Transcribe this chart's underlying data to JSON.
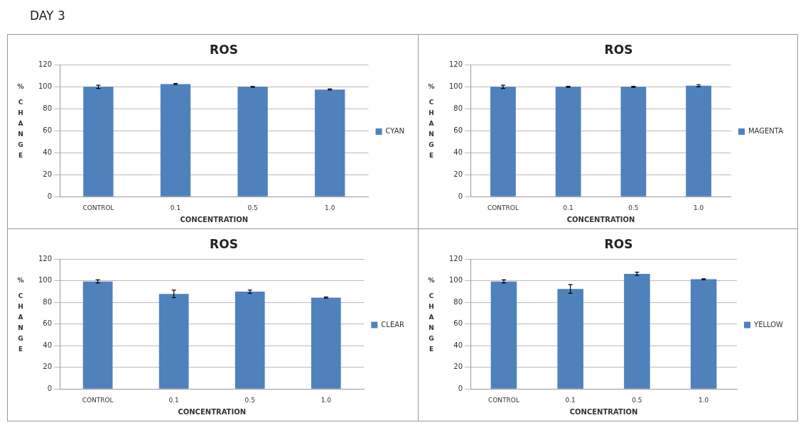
{
  "chart_data": [
    {
      "type": "bar",
      "title": "ROS",
      "xlabel": "CONCENTRATION",
      "ylabel": "% CHANGE",
      "annotations": [
        "DAY 3"
      ],
      "categories": [
        "CONTROL",
        "0.1",
        "0.5",
        "1.0"
      ],
      "series": [
        {
          "name": "CYAN",
          "color": "#4f81bd",
          "values": [
            100,
            102.5,
            100,
            97.5
          ],
          "errors": [
            1.5,
            0.5,
            0.3,
            0.5
          ]
        }
      ],
      "ylim": [
        0,
        120
      ],
      "yticks": [
        0,
        20,
        40,
        60,
        80,
        100,
        120
      ],
      "grid": "y",
      "legend": "right"
    },
    {
      "type": "bar",
      "title": "ROS",
      "xlabel": "CONCENTRATION",
      "ylabel": "% CHANGE",
      "categories": [
        "CONTROL",
        "0.1",
        "0.5",
        "1.0"
      ],
      "series": [
        {
          "name": "MAGENTA",
          "color": "#4f81bd",
          "values": [
            100,
            100,
            100,
            101
          ],
          "errors": [
            1.5,
            0.5,
            0.5,
            1
          ]
        }
      ],
      "ylim": [
        0,
        120
      ],
      "yticks": [
        0,
        20,
        40,
        60,
        80,
        100,
        120
      ],
      "grid": "y",
      "legend": "right"
    },
    {
      "type": "bar",
      "title": "ROS",
      "xlabel": "CONCENTRATION",
      "ylabel": "% CHANGE",
      "categories": [
        "CONTROL",
        "0.1",
        "0.5",
        "1.0"
      ],
      "series": [
        {
          "name": "CLEAR",
          "color": "#4f81bd",
          "values": [
            99.5,
            88,
            90,
            84.5
          ],
          "errors": [
            1.5,
            3.5,
            1.5,
            0.5
          ]
        }
      ],
      "ylim": [
        0,
        120
      ],
      "yticks": [
        0,
        20,
        40,
        60,
        80,
        100,
        120
      ],
      "grid": "y",
      "legend": "right"
    },
    {
      "type": "bar",
      "title": "ROS",
      "xlabel": "CONCENTRATION",
      "ylabel": "% CHANGE",
      "categories": [
        "CONTROL",
        "0.1",
        "0.5",
        "1.0"
      ],
      "series": [
        {
          "name": "YELLOW",
          "color": "#4f81bd",
          "values": [
            99.5,
            92.5,
            106.5,
            101.5
          ],
          "errors": [
            1.5,
            4,
            1.5,
            0.5
          ]
        }
      ],
      "ylim": [
        0,
        120
      ],
      "yticks": [
        0,
        20,
        40,
        60,
        80,
        100,
        120
      ],
      "grid": "y",
      "legend": "right"
    }
  ]
}
